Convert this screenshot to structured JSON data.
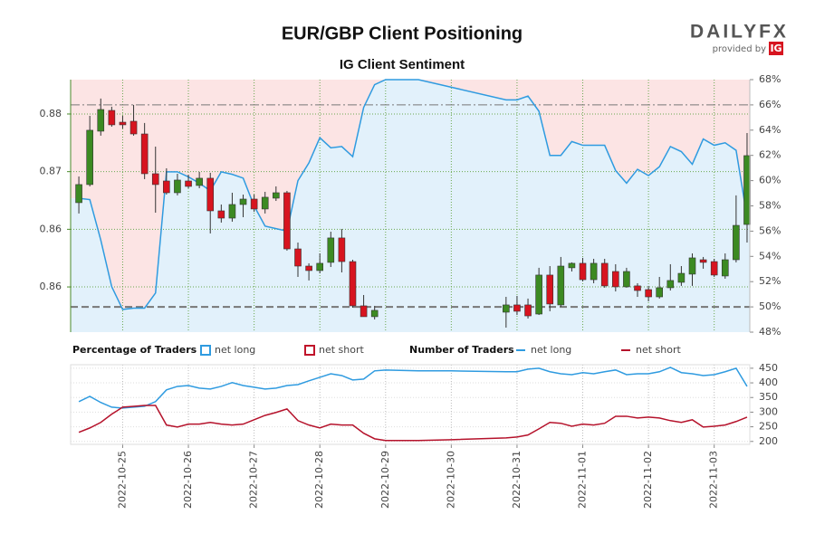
{
  "chart_data": {
    "type": "candlestick",
    "title": "EUR/GBP Client Positioning",
    "subtitle": "IG Client Sentiment",
    "logo": {
      "brand": "DAILYFX",
      "tagline": "provided by",
      "ig": "IG"
    },
    "xlim": [
      -19,
      229
    ],
    "xticks": [
      {
        "value": 0,
        "label": "2022-10-25"
      },
      {
        "value": 24,
        "label": "2022-10-26"
      },
      {
        "value": 48,
        "label": "2022-10-27"
      },
      {
        "value": 72,
        "label": "2022-10-28"
      },
      {
        "value": 96,
        "label": "2022-10-29"
      },
      {
        "value": 120,
        "label": "2022-10-30"
      },
      {
        "value": 144,
        "label": "2022-10-31"
      },
      {
        "value": 168,
        "label": "2022-11-01"
      },
      {
        "value": 192,
        "label": "2022-11-02"
      },
      {
        "value": 216,
        "label": "2022-11-03"
      }
    ],
    "ylim": [
      0.85608,
      0.87798
    ],
    "yticks": [
      {
        "value": 0.86,
        "label": "0.86"
      },
      {
        "value": 0.865,
        "label": "0.86"
      },
      {
        "value": 0.87,
        "label": "0.87"
      },
      {
        "value": 0.875,
        "label": "0.88"
      }
    ],
    "y2lim": [
      48,
      68
    ],
    "y2ticks": [
      {
        "value": 48,
        "label": "48%"
      },
      {
        "value": 50,
        "label": "50%"
      },
      {
        "value": 52,
        "label": "52%"
      },
      {
        "value": 54,
        "label": "54%"
      },
      {
        "value": 56,
        "label": "56%"
      },
      {
        "value": 58,
        "label": "58%"
      },
      {
        "value": 60,
        "label": "60%"
      },
      {
        "value": 62,
        "label": "62%"
      },
      {
        "value": 64,
        "label": "64%"
      },
      {
        "value": 66,
        "label": "66%"
      },
      {
        "value": 68,
        "label": "68%"
      }
    ],
    "y2_reference_lines": [
      50,
      66
    ],
    "grid": true,
    "candles": {
      "up_color": "#3c8a22",
      "down_color": "#d7141f",
      "x": [
        -16,
        -12,
        -8,
        -4,
        0,
        4,
        8,
        12,
        16,
        20,
        24,
        28,
        32,
        36,
        40,
        44,
        48,
        52,
        56,
        60,
        64,
        68,
        72,
        76,
        80,
        84,
        88,
        92,
        140,
        144,
        148,
        152,
        156,
        160,
        164,
        168,
        172,
        176,
        180,
        184,
        188,
        192,
        196,
        200,
        204,
        208,
        212,
        216,
        220,
        224,
        228
      ],
      "open": [
        0.86731,
        0.86888,
        0.87351,
        0.87531,
        0.87429,
        0.87437,
        0.87327,
        0.86982,
        0.86919,
        0.86817,
        0.86919,
        0.8688,
        0.86943,
        0.8666,
        0.86597,
        0.86715,
        0.86762,
        0.86676,
        0.8677,
        0.86817,
        0.8633,
        0.86181,
        0.86142,
        0.86213,
        0.86425,
        0.8622,
        0.85836,
        0.85742,
        0.85781,
        0.85844,
        0.85844,
        0.85765,
        0.86103,
        0.85844,
        0.86166,
        0.86205,
        0.86063,
        0.86205,
        0.86134,
        0.86001,
        0.86009,
        0.85977,
        0.85914,
        0.85993,
        0.8604,
        0.86111,
        0.86236,
        0.8622,
        0.86095,
        0.86236,
        0.86542
      ],
      "high": [
        0.86958,
        0.87484,
        0.87634,
        0.87563,
        0.87484,
        0.87579,
        0.87422,
        0.87217,
        0.87029,
        0.86982,
        0.86974,
        0.86998,
        0.8699,
        0.86715,
        0.86817,
        0.86801,
        0.86801,
        0.86825,
        0.86872,
        0.86833,
        0.86385,
        0.86205,
        0.86291,
        0.86479,
        0.86503,
        0.86236,
        0.8593,
        0.85836,
        0.85914,
        0.85922,
        0.85899,
        0.86166,
        0.86181,
        0.8626,
        0.86213,
        0.86252,
        0.86244,
        0.86244,
        0.86197,
        0.86166,
        0.86032,
        0.86009,
        0.86087,
        0.86197,
        0.86181,
        0.86291,
        0.8626,
        0.86244,
        0.86291,
        0.86794,
        0.87335
      ],
      "low": [
        0.86637,
        0.86872,
        0.87312,
        0.8739,
        0.87374,
        0.87312,
        0.86935,
        0.86644,
        0.86801,
        0.86794,
        0.86856,
        0.86856,
        0.86464,
        0.86558,
        0.86566,
        0.86605,
        0.86652,
        0.86637,
        0.86746,
        0.86315,
        0.86087,
        0.86056,
        0.86118,
        0.86173,
        0.86126,
        0.8582,
        0.85742,
        0.85718,
        0.85647,
        0.85757,
        0.85726,
        0.85757,
        0.85789,
        0.85828,
        0.86134,
        0.86048,
        0.86032,
        0.85993,
        0.85961,
        0.85993,
        0.85914,
        0.85875,
        0.85899,
        0.85969,
        0.86009,
        0.86009,
        0.86158,
        0.86087,
        0.86071,
        0.86213,
        0.86385
      ],
      "close": [
        0.86888,
        0.87359,
        0.87539,
        0.87406,
        0.87406,
        0.87327,
        0.86982,
        0.86888,
        0.86817,
        0.86927,
        0.86872,
        0.86943,
        0.8666,
        0.86597,
        0.86715,
        0.86762,
        0.86676,
        0.86778,
        0.86817,
        0.8633,
        0.86181,
        0.86142,
        0.86205,
        0.86425,
        0.8622,
        0.85836,
        0.85742,
        0.85797,
        0.85844,
        0.85789,
        0.85749,
        0.86103,
        0.85852,
        0.86181,
        0.86205,
        0.86063,
        0.86205,
        0.86009,
        0.86001,
        0.86134,
        0.85969,
        0.85914,
        0.85993,
        0.86056,
        0.86118,
        0.86252,
        0.86213,
        0.86103,
        0.86236,
        0.86534,
        0.87139
      ]
    },
    "line_x": [
      -16,
      -12,
      -8,
      -4,
      0,
      4,
      8,
      12,
      16,
      20,
      24,
      28,
      32,
      36,
      40,
      44,
      48,
      52,
      56,
      60,
      64,
      68,
      72,
      76,
      80,
      84,
      88,
      92,
      96,
      108,
      120,
      140,
      144,
      148,
      152,
      156,
      160,
      164,
      168,
      172,
      176,
      180,
      184,
      188,
      192,
      196,
      200,
      204,
      208,
      212,
      216,
      220,
      224,
      228
    ],
    "sentiment": {
      "legend_title": "Percentage of Traders",
      "line_color": "#2f9be0",
      "long": {
        "name": "net long",
        "color": "#2f9be0",
        "fill": "#e2f1fb"
      },
      "short": {
        "name": "net short",
        "color": "#c0142a",
        "fill": "#fce4e4"
      },
      "values": [
        58.6,
        58.5,
        55.3,
        51.6,
        49.8,
        49.9,
        49.9,
        51.1,
        60.7,
        60.7,
        60.3,
        59.8,
        59.2,
        60.7,
        60.5,
        60.2,
        58.0,
        56.4,
        56.2,
        56.0,
        60.0,
        61.4,
        63.4,
        62.6,
        62.7,
        61.9,
        65.8,
        67.6,
        68.0,
        68.0,
        67.4,
        66.4,
        66.4,
        66.7,
        65.5,
        62.0,
        62.0,
        63.1,
        62.8,
        62.8,
        62.8,
        60.8,
        59.8,
        60.9,
        60.4,
        61.1,
        62.7,
        62.3,
        61.3,
        63.3,
        62.8,
        63.0,
        62.4,
        57.1
      ]
    },
    "traders": {
      "legend_title": "Number of Traders",
      "ylim": [
        190,
        462
      ],
      "yticks": [
        200,
        250,
        300,
        350,
        400,
        450
      ],
      "series": [
        {
          "name": "net long",
          "color": "#2f9be0",
          "values": [
            336,
            354,
            333,
            317,
            314,
            317,
            320,
            336,
            376,
            388,
            391,
            382,
            379,
            388,
            401,
            391,
            385,
            379,
            382,
            391,
            394,
            407,
            419,
            431,
            425,
            410,
            413,
            441,
            444,
            441,
            441,
            438,
            438,
            447,
            450,
            438,
            431,
            428,
            435,
            431,
            438,
            444,
            428,
            431,
            431,
            438,
            453,
            435,
            431,
            425,
            428,
            438,
            450,
            388
          ]
        },
        {
          "name": "net short",
          "color": "#b5122b",
          "values": [
            231,
            246,
            265,
            293,
            317,
            320,
            323,
            323,
            256,
            249,
            259,
            259,
            265,
            259,
            256,
            259,
            274,
            289,
            299,
            311,
            271,
            256,
            246,
            259,
            256,
            256,
            228,
            209,
            203,
            203,
            206,
            212,
            215,
            222,
            243,
            265,
            262,
            252,
            259,
            256,
            262,
            286,
            286,
            280,
            283,
            280,
            271,
            265,
            274,
            249,
            252,
            256,
            268,
            283
          ]
        }
      ]
    }
  }
}
